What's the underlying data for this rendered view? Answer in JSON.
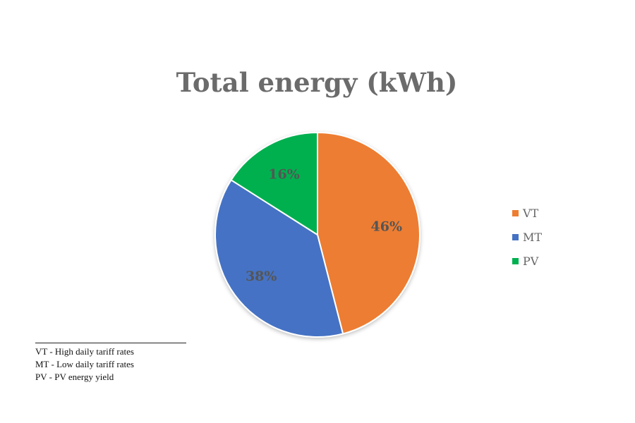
{
  "chart_data": {
    "type": "pie",
    "title": "Total energy (kWh)",
    "categories": [
      "VT",
      "MT",
      "PV"
    ],
    "values": [
      46,
      38,
      16
    ],
    "labels": [
      "46%",
      "38%",
      "16%"
    ],
    "colors": [
      "#ED7D31",
      "#4472C4",
      "#00B050"
    ],
    "legend": "right"
  },
  "footnotes": [
    "VT - High daily tariff rates",
    "MT - Low daily tariff rates",
    "PV - PV energy yield"
  ]
}
